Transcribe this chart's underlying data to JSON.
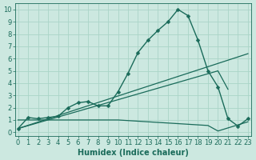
{
  "xlabel": "Humidex (Indice chaleur)",
  "ylabel": "",
  "xlim": [
    -0.3,
    23.3
  ],
  "ylim": [
    -0.3,
    10.5
  ],
  "xticks": [
    0,
    1,
    2,
    3,
    4,
    5,
    6,
    7,
    8,
    9,
    10,
    11,
    12,
    13,
    14,
    15,
    16,
    17,
    18,
    19,
    20,
    21,
    22,
    23
  ],
  "yticks": [
    0,
    1,
    2,
    3,
    4,
    5,
    6,
    7,
    8,
    9,
    10
  ],
  "bg_color": "#cce8e0",
  "grid_color": "#aad4c8",
  "line_color": "#1a6b5a",
  "series": [
    {
      "x": [
        0,
        1,
        2,
        3,
        4,
        5,
        6,
        7,
        8,
        9,
        10,
        11,
        12,
        13,
        14,
        15,
        16,
        17,
        18,
        19,
        20,
        21,
        22,
        23
      ],
      "y": [
        0.3,
        1.2,
        1.1,
        1.2,
        1.3,
        2.0,
        2.4,
        2.5,
        2.15,
        2.15,
        3.3,
        4.8,
        6.5,
        7.5,
        8.3,
        9.0,
        10.0,
        9.5,
        7.5,
        5.0,
        3.7,
        1.1,
        0.5,
        1.1
      ],
      "marker": "D",
      "markersize": 2.5,
      "linewidth": 1.0,
      "has_marker": true
    },
    {
      "x": [
        0,
        23
      ],
      "y": [
        0.3,
        6.4
      ],
      "marker": null,
      "markersize": 0,
      "linewidth": 0.9,
      "has_marker": false
    },
    {
      "x": [
        0,
        20,
        21
      ],
      "y": [
        0.3,
        5.0,
        3.5
      ],
      "marker": null,
      "markersize": 0,
      "linewidth": 0.9,
      "has_marker": false
    },
    {
      "x": [
        0,
        1,
        2,
        3,
        4,
        5,
        6,
        7,
        8,
        9,
        10,
        11,
        12,
        13,
        14,
        15,
        16,
        17,
        18,
        19,
        20,
        21,
        22,
        23
      ],
      "y": [
        1.0,
        1.0,
        1.0,
        1.0,
        1.0,
        1.0,
        1.0,
        1.0,
        1.0,
        1.0,
        1.0,
        0.95,
        0.9,
        0.85,
        0.8,
        0.75,
        0.7,
        0.65,
        0.6,
        0.55,
        0.1,
        0.35,
        0.6,
        0.85
      ],
      "marker": null,
      "markersize": 0,
      "linewidth": 0.9,
      "has_marker": false
    }
  ],
  "font_color": "#1a6b5a",
  "tick_fontsize": 6,
  "label_fontsize": 7,
  "figsize": [
    3.2,
    2.0
  ],
  "dpi": 100
}
